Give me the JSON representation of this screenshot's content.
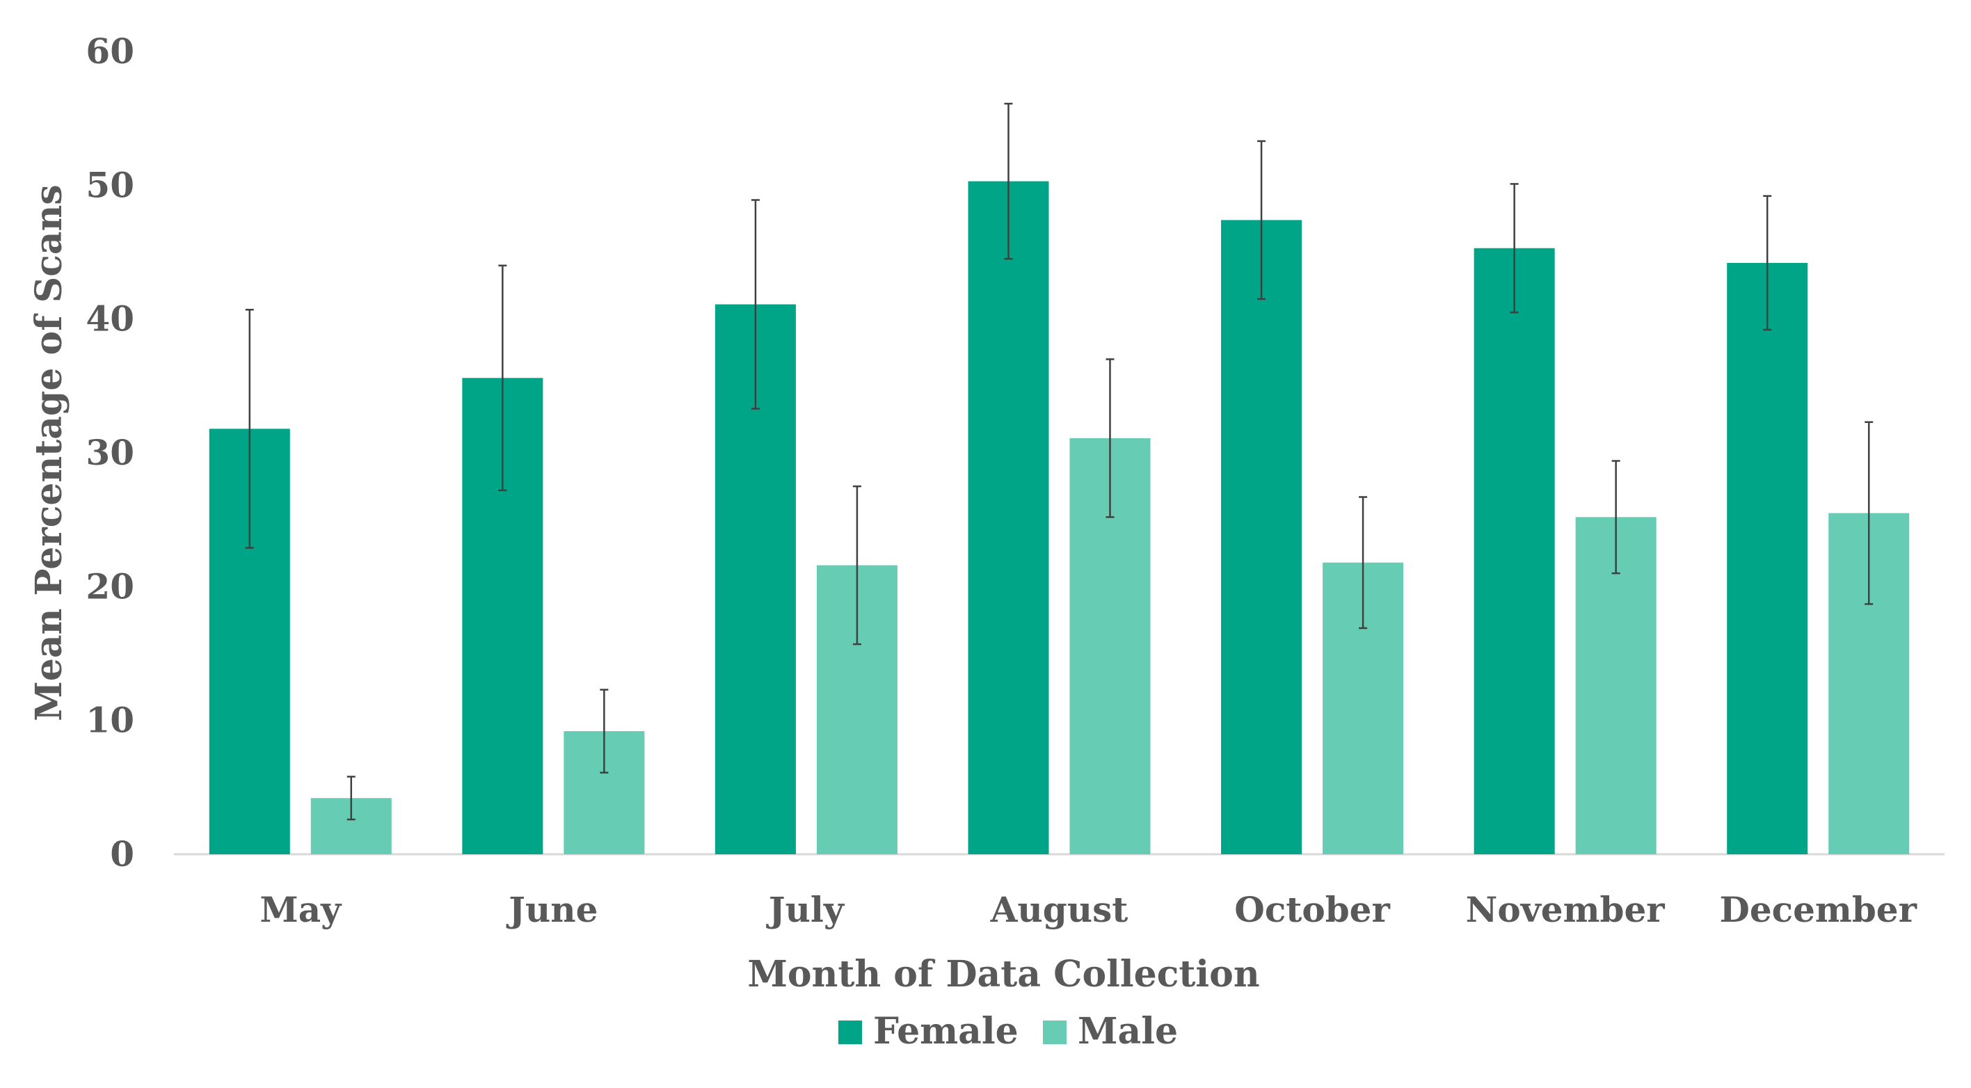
{
  "chart_data": {
    "type": "bar",
    "title": "",
    "xlabel": "Month of Data Collection",
    "ylabel": "Mean Percentage of Scans",
    "ylim": [
      0,
      60
    ],
    "yticks": [
      0,
      10,
      20,
      30,
      40,
      50,
      60
    ],
    "grid": false,
    "legend_position": "bottom",
    "categories": [
      "May",
      "June",
      "July",
      "August",
      "October",
      "November",
      "December"
    ],
    "series": [
      {
        "name": "Female",
        "color": "#00a588",
        "values": [
          31.8,
          35.6,
          41.1,
          50.3,
          47.4,
          45.3,
          44.2
        ],
        "error": [
          8.9,
          8.4,
          7.8,
          5.8,
          5.9,
          4.8,
          5.0
        ]
      },
      {
        "name": "Male",
        "color": "#66cdb4",
        "values": [
          4.2,
          9.2,
          21.6,
          31.1,
          21.8,
          25.2,
          25.5
        ],
        "error": [
          1.6,
          3.1,
          5.9,
          5.9,
          4.9,
          4.2,
          6.8
        ]
      }
    ]
  }
}
